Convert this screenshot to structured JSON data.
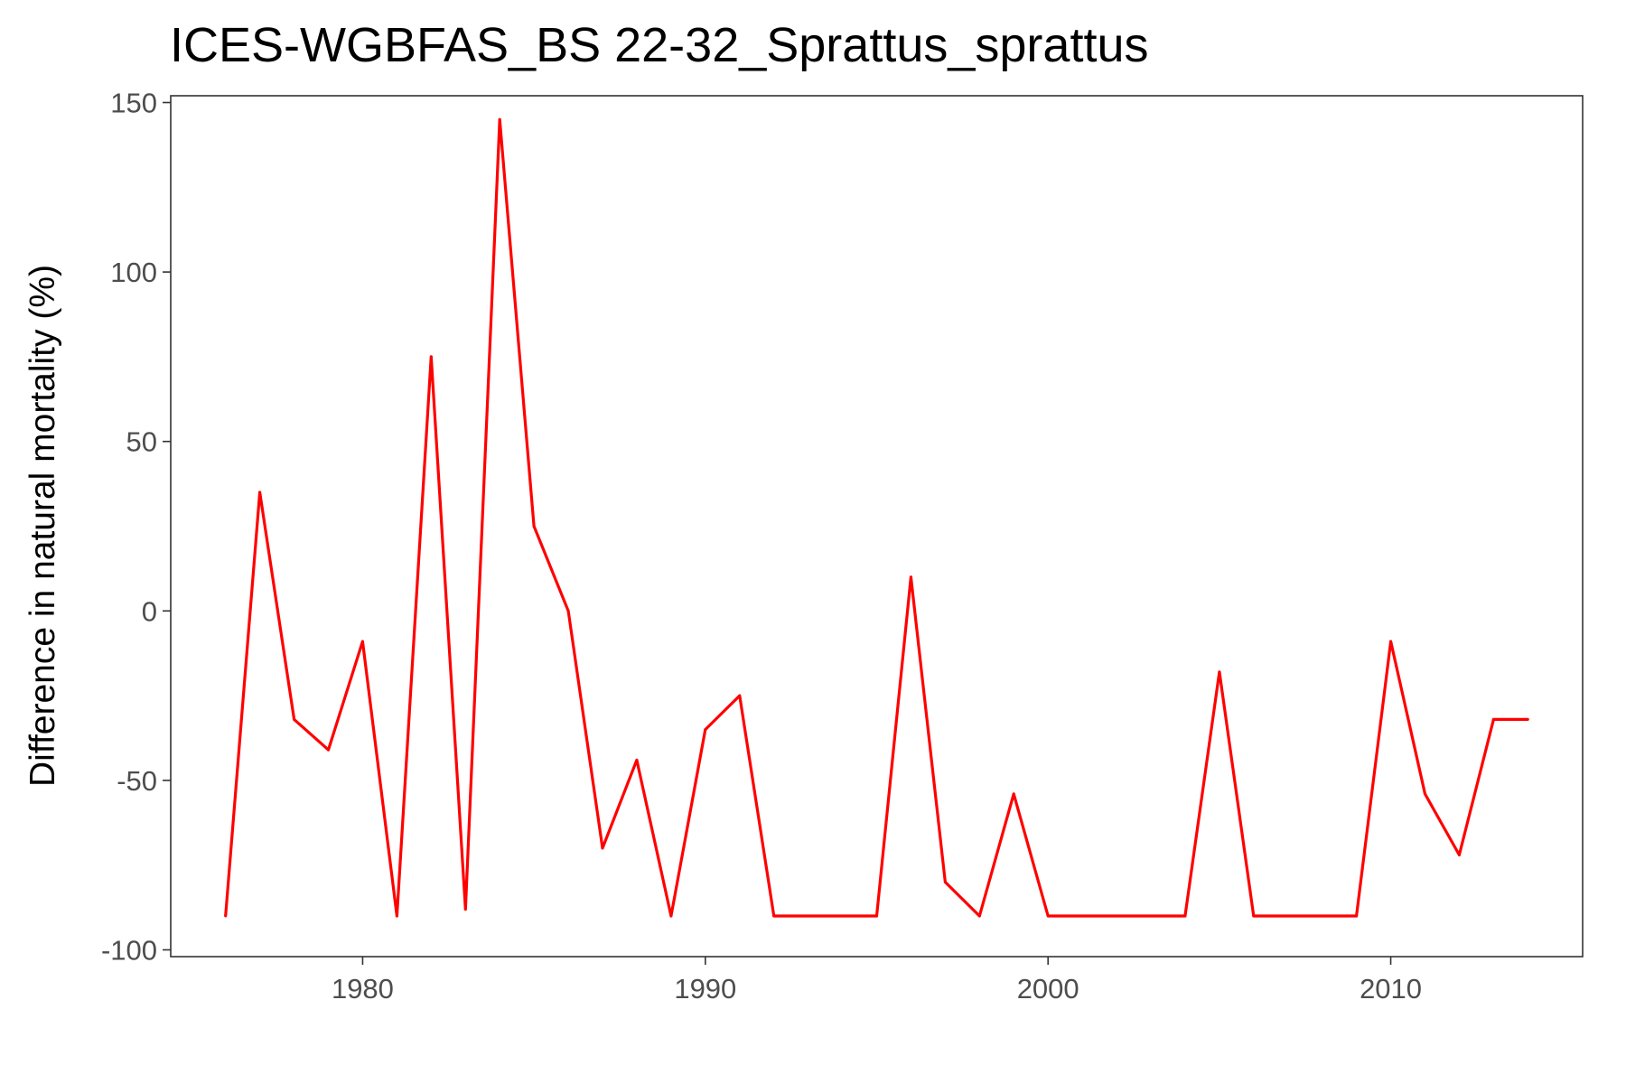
{
  "chart_data": {
    "type": "line",
    "title": "ICES-WGBFAS_BS 22-32_Sprattus_sprattus",
    "xlabel": "",
    "ylabel": "Difference in natural mortality (%)",
    "xlim": [
      1974.4,
      2015.6
    ],
    "ylim": [
      -102,
      152
    ],
    "x_ticks": [
      1980,
      1990,
      2000,
      2010
    ],
    "x_tick_labels": [
      "1980",
      "1990",
      "2000",
      "2010"
    ],
    "y_ticks": [
      150,
      100,
      50,
      0,
      -50,
      -100
    ],
    "y_tick_labels": [
      "150",
      "100",
      "50",
      "0",
      "-50",
      "-100"
    ],
    "grid": false,
    "line_color": "#ff0000",
    "series": [
      {
        "x": [
          1976,
          1977,
          1978,
          1979,
          1980,
          1981,
          1982,
          1983,
          1984,
          1985,
          1986,
          1987,
          1988,
          1989,
          1990,
          1991,
          1992,
          1993,
          1994,
          1995,
          1996,
          1997,
          1998,
          1999,
          2000,
          2001,
          2002,
          2003,
          2004,
          2005,
          2006,
          2007,
          2008,
          2009,
          2010,
          2011,
          2012,
          2013,
          2014
        ],
        "values": [
          -90,
          35,
          -32,
          -41,
          -9,
          -90,
          75,
          -88,
          145,
          25,
          0,
          -70,
          -44,
          -90,
          -35,
          -25,
          -90,
          -90,
          -90,
          -90,
          10,
          -80,
          -90,
          -54,
          -90,
          -90,
          -90,
          -90,
          -90,
          -18,
          -90,
          -90,
          -90,
          -90,
          -9,
          -54,
          -72,
          -32,
          -32
        ]
      }
    ]
  }
}
